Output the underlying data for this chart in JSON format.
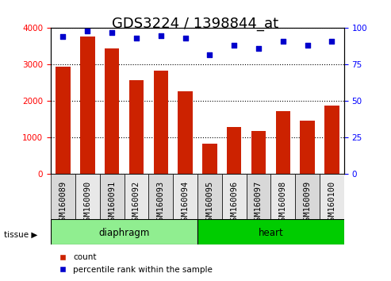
{
  "title": "GDS3224 / 1398844_at",
  "samples": [
    "GSM160089",
    "GSM160090",
    "GSM160091",
    "GSM160092",
    "GSM160093",
    "GSM160094",
    "GSM160095",
    "GSM160096",
    "GSM160097",
    "GSM160098",
    "GSM160099",
    "GSM160100"
  ],
  "counts": [
    2950,
    3780,
    3450,
    2580,
    2840,
    2260,
    840,
    1290,
    1190,
    1730,
    1460,
    1890
  ],
  "percentiles": [
    94,
    98,
    97,
    93,
    95,
    93,
    82,
    88,
    86,
    91,
    88,
    91
  ],
  "tissue_groups": [
    {
      "label": "diaphragm",
      "start": 0,
      "end": 6,
      "color": "#90ee90"
    },
    {
      "label": "heart",
      "start": 6,
      "end": 12,
      "color": "#00cc00"
    }
  ],
  "bar_color": "#cc2200",
  "dot_color": "#0000cc",
  "ylim_left": [
    0,
    4000
  ],
  "ylim_right": [
    0,
    100
  ],
  "yticks_left": [
    0,
    1000,
    2000,
    3000,
    4000
  ],
  "yticks_right": [
    0,
    25,
    50,
    75,
    100
  ],
  "grid_color": "black",
  "bg_color": "#f0f0f0",
  "label_count": "count",
  "label_pct": "percentile rank within the sample",
  "tissue_label": "tissue",
  "title_fontsize": 13,
  "tick_label_fontsize": 7.5,
  "axis_label_fontsize": 8
}
